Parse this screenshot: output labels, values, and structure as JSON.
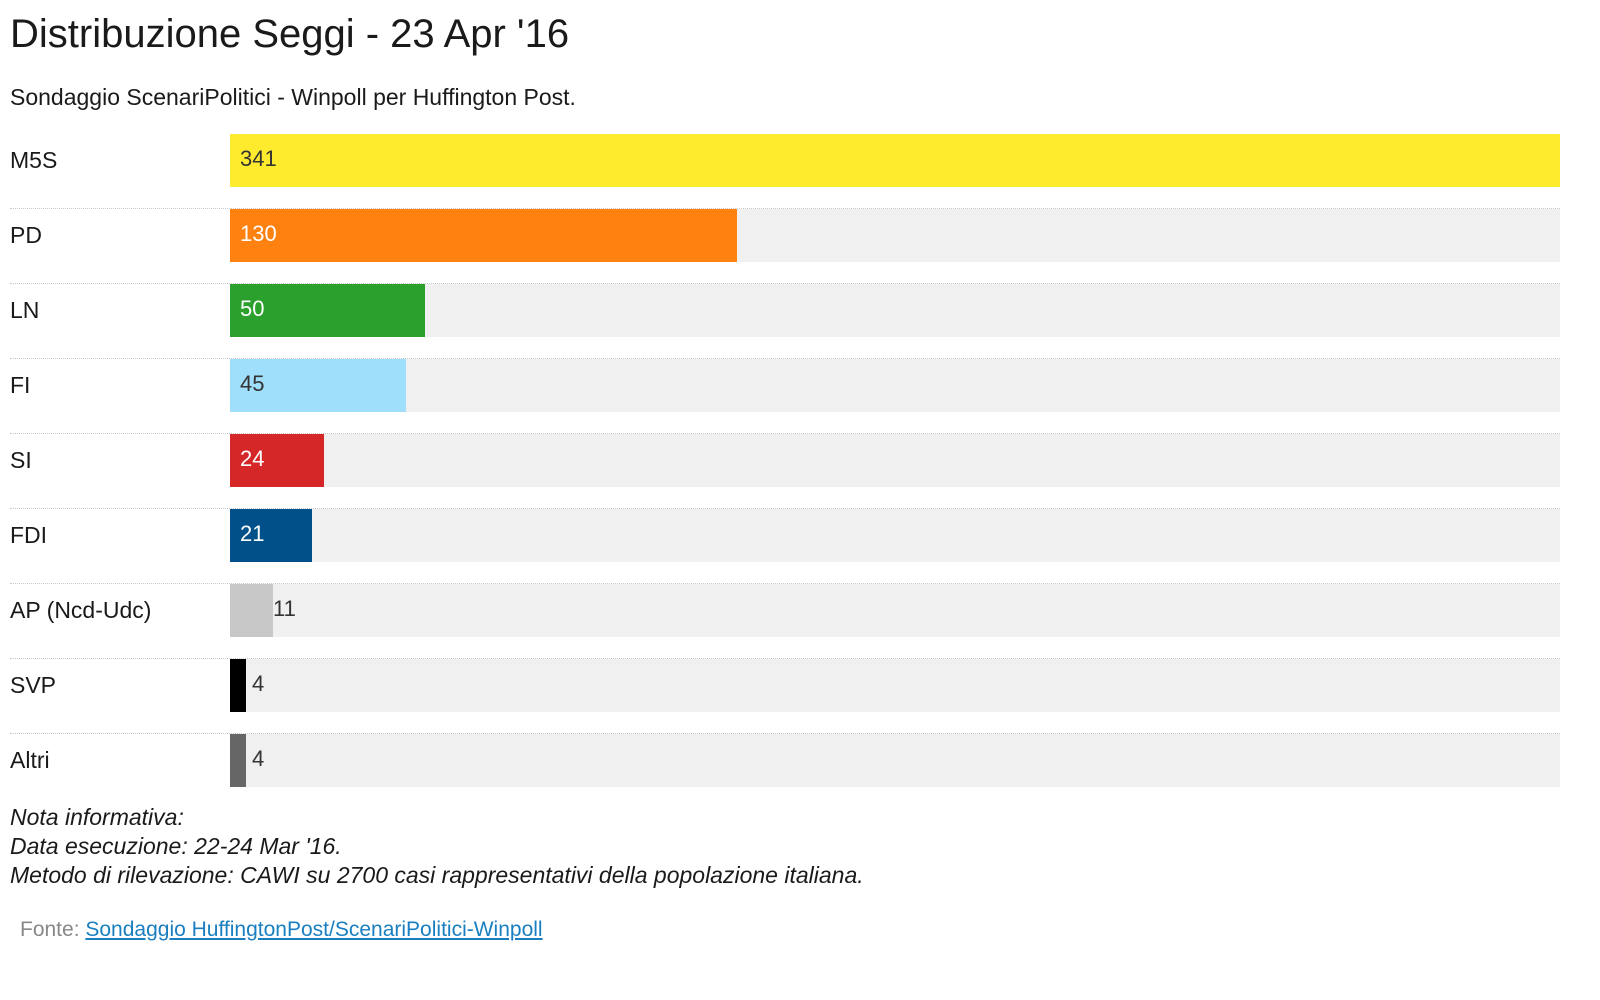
{
  "header": {
    "title": "Distribuzione Seggi - 23 Apr '16",
    "subtitle": "Sondaggio ScenariPolitici - Winpoll per Huffington Post."
  },
  "chart_data": {
    "type": "bar",
    "orientation": "horizontal",
    "title": "Distribuzione Seggi - 23 Apr '16",
    "subtitle": "Sondaggio ScenariPolitici - Winpoll per Huffington Post.",
    "xlim": [
      0,
      341
    ],
    "grid": false,
    "categories": [
      "M5S",
      "PD",
      "LN",
      "FI",
      "SI",
      "FDI",
      "AP (Ncd-Udc)",
      "SVP",
      "Altri"
    ],
    "values": [
      341,
      130,
      50,
      45,
      24,
      21,
      11,
      4,
      4
    ],
    "colors": [
      "#ffeb2e",
      "#ff8210",
      "#2ca02c",
      "#a0dffb",
      "#d62728",
      "#01508a",
      "#c8c8c8",
      "#000000",
      "#666666"
    ],
    "label_colors": [
      "#333333",
      "#ffffff",
      "#ffffff",
      "#333333",
      "#ffffff",
      "#ffffff",
      "#333333",
      "#333333",
      "#333333"
    ]
  },
  "notes": {
    "heading": "Nota informativa:",
    "date": "Data esecuzione: 22-24 Mar '16.",
    "method": "Metodo di rilevazione: CAWI su 2700 casi rappresentativi della popolazione italiana."
  },
  "source": {
    "prefix": "Fonte: ",
    "link_text": "Sondaggio HuffingtonPost/ScenariPolitici-Winpoll"
  }
}
